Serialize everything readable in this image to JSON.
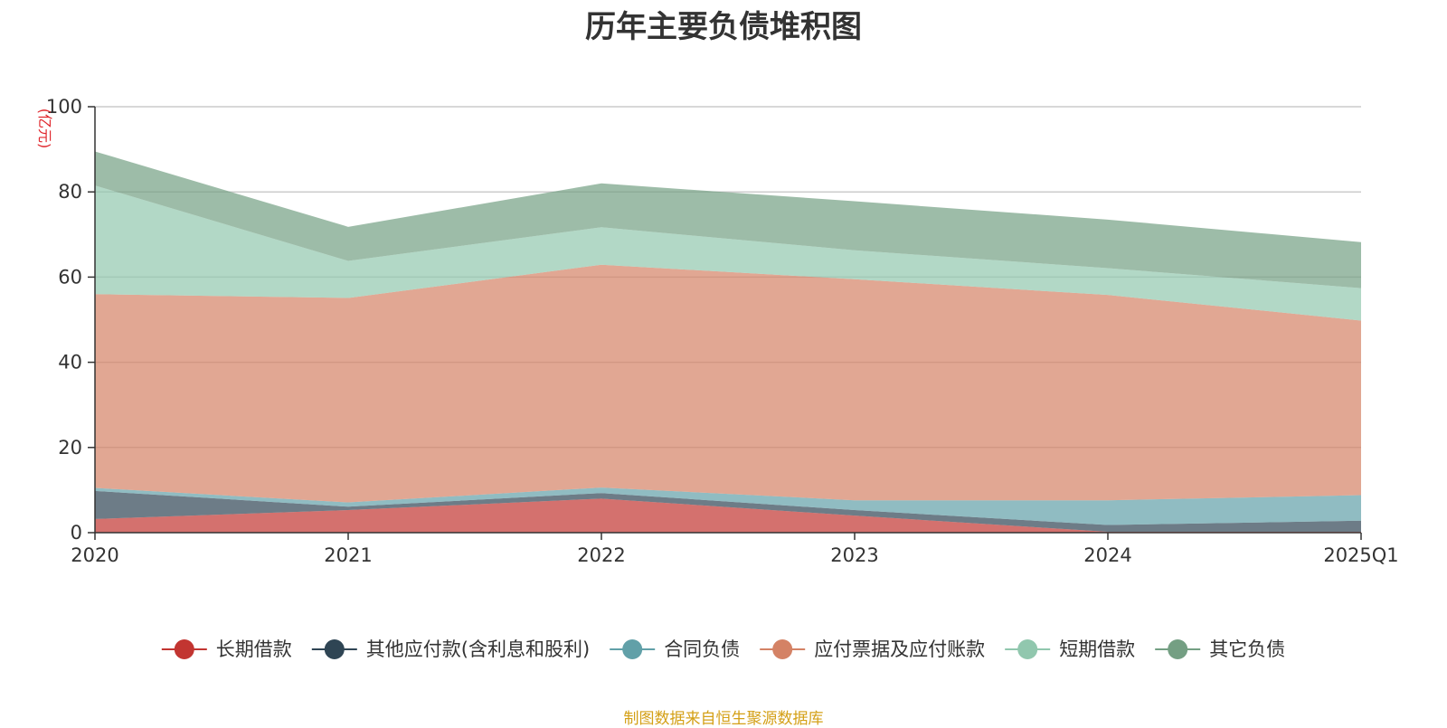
{
  "chart_data": {
    "type": "area",
    "title": "历年主要负债堆积图",
    "unit_label": "(亿元)",
    "categories": [
      "2020",
      "2021",
      "2022",
      "2023",
      "2024",
      "2025Q1"
    ],
    "ylim": [
      0,
      100
    ],
    "yticks": [
      0,
      20,
      40,
      60,
      80,
      100
    ],
    "grid": true,
    "stacked": true,
    "legend_position": "bottom",
    "series": [
      {
        "name": "长期借款",
        "color": "#c23531",
        "values": [
          3.2,
          5.3,
          8.0,
          4.0,
          0.2,
          0.2
        ]
      },
      {
        "name": "其他应付款(含利息和股利)",
        "color": "#2f4554",
        "values": [
          6.6,
          0.8,
          1.3,
          1.3,
          1.6,
          2.6
        ]
      },
      {
        "name": "合同负债",
        "color": "#61a0a8",
        "values": [
          0.7,
          1.0,
          1.3,
          2.3,
          5.8,
          6.0
        ]
      },
      {
        "name": "应付票据及应付账款",
        "color": "#d48265",
        "values": [
          45.5,
          48.0,
          52.3,
          51.9,
          48.2,
          41.0
        ]
      },
      {
        "name": "短期借款",
        "color": "#91c7ae",
        "values": [
          25.5,
          8.7,
          8.8,
          6.8,
          6.3,
          7.6
        ]
      },
      {
        "name": "其它负债",
        "color": "#749f83",
        "values": [
          8.0,
          8.0,
          10.3,
          11.5,
          11.4,
          10.8
        ]
      }
    ],
    "source": "制图数据来自恒生聚源数据库"
  }
}
